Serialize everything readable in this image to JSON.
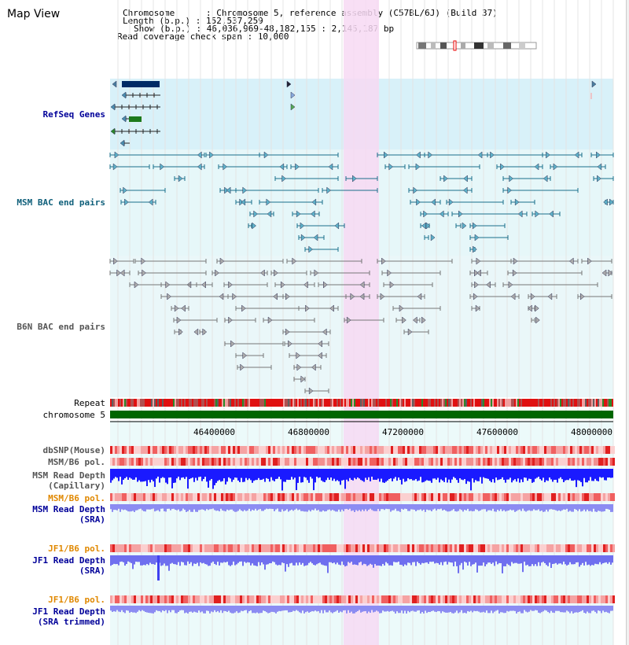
{
  "title": "Map View",
  "info": {
    "chromosome": "Chromosome      : Chromosome 5, reference assembly (C57BL/6J) (Build 37)",
    "length": "Length (b.p.) : 152,537,259",
    "show": "Show (b.p.) : 46,036,969-48,182,155 : 2,145,187 bp",
    "span": "Read coverage check span : 10,000"
  },
  "tracks": {
    "refseq": "RefSeq Genes",
    "msm_bac": "MSM BAC end pairs",
    "b6n_bac": "B6N BAC end pairs",
    "repeat": "Repeat",
    "chromosome": "chromosome 5",
    "dbsnp": "dbSNP(Mouse)",
    "msm_b6_pol_1": "MSM/B6 pol.",
    "msm_depth_cap_1": "MSM Read Depth",
    "msm_depth_cap_2": "(Capillary)",
    "msm_b6_pol_2": "MSM/B6 pol.",
    "msm_depth_sra_1": "MSM Read Depth",
    "msm_depth_sra_2": "(SRA)",
    "jf1_b6_pol_1": "JF1/B6 pol.",
    "jf1_depth_sra_1": "JF1 Read Depth",
    "jf1_depth_sra_2": "(SRA)",
    "jf1_b6_pol_2": "JF1/B6 pol.",
    "jf1_depth_trim_1": "JF1 Read Depth",
    "jf1_depth_trim_2": "(SRA trimmed)"
  },
  "axis": {
    "ticks": [
      "46400000",
      "46800000",
      "47200000",
      "47600000",
      "48000000"
    ]
  },
  "colors": {
    "highlight": "#f7d9f3",
    "refseq_bg": "#d8f1f9",
    "msm_bg": "#e6f7f9",
    "b6n_bg": "#eaf7f9",
    "msm_label": "#0f5f7a",
    "refseq_label": "#000099",
    "b6n_label": "#555555",
    "orange_label": "#e08800",
    "blue_label": "#000099",
    "chrom_bar": "#006600",
    "read_depth": "#1a1aff",
    "read_depth_light": "#8c8cf2"
  }
}
